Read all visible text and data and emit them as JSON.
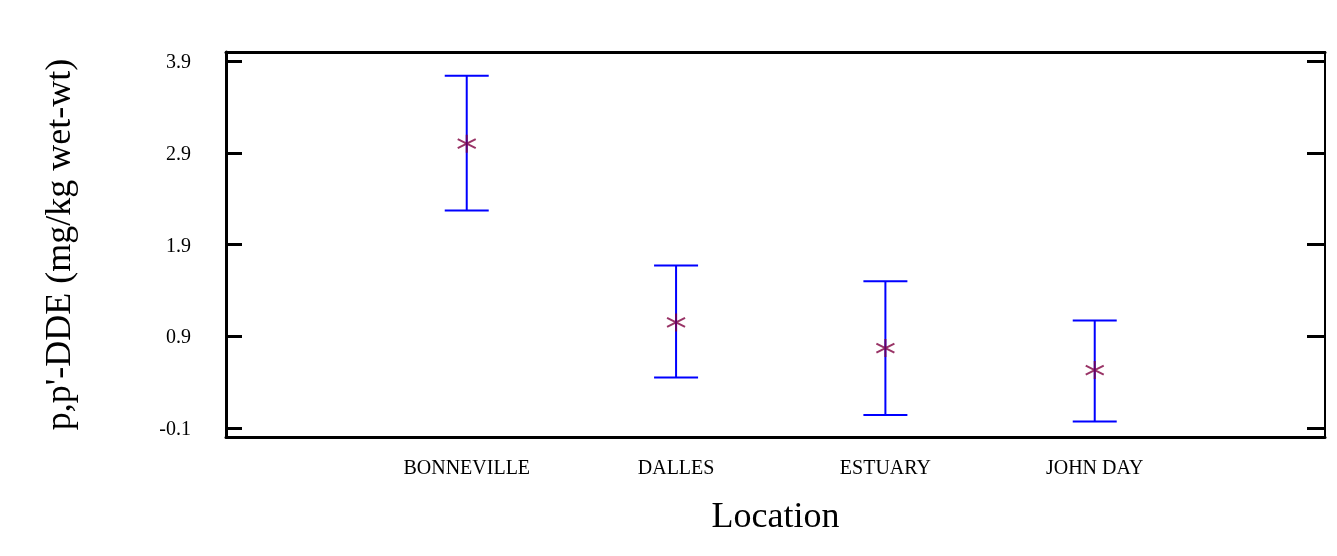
{
  "chart_data": {
    "type": "scatter",
    "xlabel": "Location",
    "ylabel": "p,p'-DDE (mg/kg wet-wt)",
    "categories": [
      "BONNEVILLE",
      "DALLES",
      "ESTUARY",
      "JOHN DAY"
    ],
    "color": "#800040",
    "values": [
      3.0,
      1.05,
      0.77,
      0.53
    ],
    "errors": [
      [
        2.27,
        3.74
      ],
      [
        0.45,
        1.67
      ],
      [
        0.04,
        1.5
      ],
      [
        -0.03,
        1.07
      ]
    ],
    "ylim": [
      -0.2,
      4.0
    ],
    "yticks": [
      -0.1,
      0.9,
      1.9,
      2.9,
      3.9
    ],
    "marker": "cross",
    "grid": false,
    "legend": false
  }
}
